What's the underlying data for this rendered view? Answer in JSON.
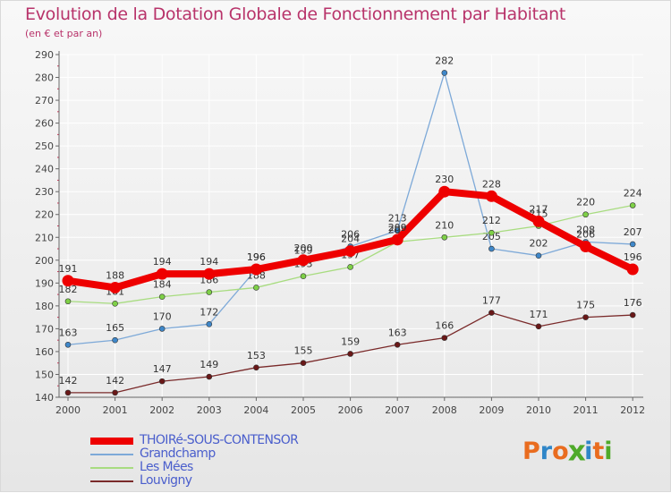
{
  "title": "Evolution de la Dotation Globale de Fonctionnement par Habitant",
  "subtitle": "(en € et par an)",
  "logo_text": "Proxiti",
  "colors": {
    "title": "#b8336a",
    "legend_text": "#4a5ecc",
    "grid": "#ffffff",
    "axis": "#666666",
    "logo": [
      "#e96c1f",
      "#2f86c8",
      "#e96c1f",
      "#4faa2a",
      "#2f86c8",
      "#e96c1f",
      "#4faa2a"
    ]
  },
  "chart_data": {
    "type": "line",
    "title": "Evolution de la Dotation Globale de Fonctionnement par Habitant",
    "subtitle": "(en € et par an)",
    "x": [
      2000,
      2001,
      2002,
      2003,
      2004,
      2005,
      2006,
      2007,
      2008,
      2009,
      2010,
      2011,
      2012
    ],
    "ylim": [
      140,
      290
    ],
    "yticks": [
      140,
      150,
      160,
      170,
      180,
      190,
      200,
      210,
      220,
      230,
      240,
      250,
      260,
      270,
      280,
      290
    ],
    "grid": true,
    "legend_position": "bottom-left",
    "series": [
      {
        "name": "THOIRé-SOUS-CONTENSOR",
        "values": [
          191,
          188,
          194,
          194,
          196,
          200,
          204,
          209,
          230,
          228,
          217,
          206,
          196
        ],
        "labels": [
          "191",
          "188",
          "194",
          "194",
          "196",
          "200",
          "204",
          "209",
          "230",
          "228",
          "217",
          "206",
          "196"
        ],
        "color": "#ee0000",
        "emphasis": true
      },
      {
        "name": "Grandchamp",
        "values": [
          163,
          165,
          170,
          172,
          196,
          199,
          206,
          213,
          282,
          205,
          202,
          208,
          207
        ],
        "labels": [
          "163",
          "165",
          "170",
          "172",
          "196",
          "199",
          "206",
          "213",
          "282",
          "205",
          "202",
          "208",
          "207"
        ],
        "color": "#7da9d8",
        "marker": "#3f87c9"
      },
      {
        "name": "Les Mées",
        "values": [
          182,
          181,
          184,
          186,
          188,
          193,
          197,
          208,
          210,
          212,
          215,
          220,
          224
        ],
        "labels": [
          "182",
          "181",
          "184",
          "186",
          "188",
          "193",
          "197",
          "208",
          "210",
          "212",
          "215",
          "220",
          "224"
        ],
        "color": "#a8dc80",
        "marker": "#7ed047"
      },
      {
        "name": "Louvigny",
        "values": [
          142,
          142,
          147,
          149,
          153,
          155,
          159,
          163,
          166,
          177,
          171,
          175,
          176
        ],
        "labels": [
          "142",
          "142",
          "147",
          "149",
          "153",
          "155",
          "159",
          "163",
          "166",
          "177",
          "171",
          "175",
          "176"
        ],
        "color": "#7a2a2a",
        "marker": "#6a1818"
      }
    ]
  }
}
